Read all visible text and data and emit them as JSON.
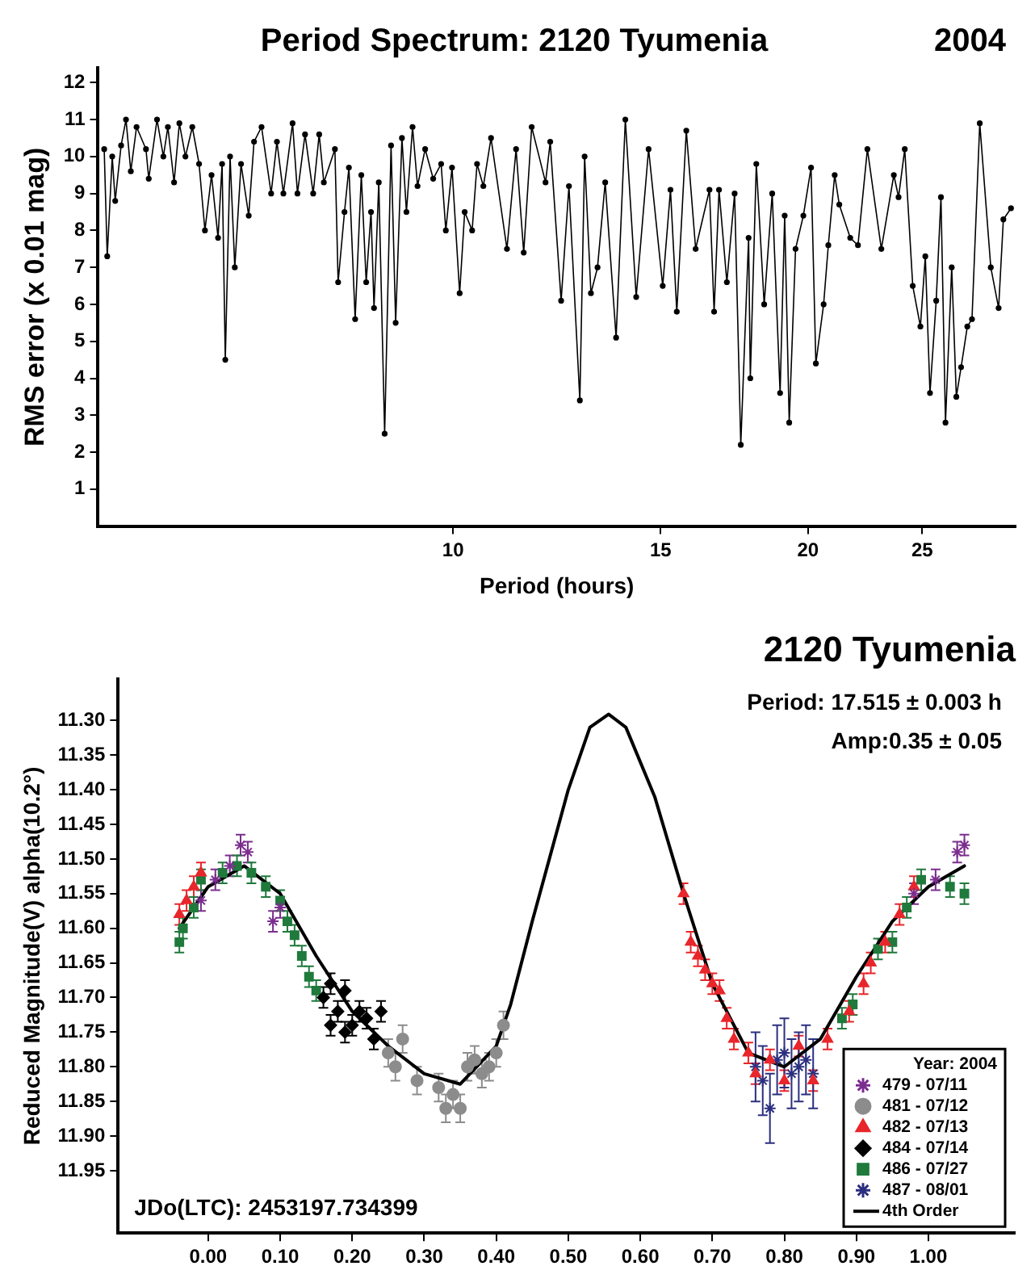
{
  "chart_data": [
    {
      "type": "line",
      "title": "Period Spectrum: 2120 Tyumenia",
      "annotations": [
        "2004"
      ],
      "xlabel": "Period (hours)",
      "ylabel": "RMS error (x 0.01 mag)",
      "log": "x",
      "xlim": [
        5,
        30
      ],
      "xticks": [
        10,
        15,
        20,
        25
      ],
      "ylim": [
        0,
        12.4
      ],
      "yticks": [
        1,
        2,
        3,
        4,
        5,
        6,
        7,
        8,
        9,
        10,
        11,
        12
      ],
      "grid": false,
      "marker": "circle",
      "color": "#000000",
      "x": [
        5.06,
        5.09,
        5.14,
        5.17,
        5.23,
        5.28,
        5.33,
        5.39,
        5.49,
        5.52,
        5.61,
        5.68,
        5.73,
        5.8,
        5.86,
        5.93,
        6.01,
        6.09,
        6.16,
        6.24,
        6.32,
        6.37,
        6.41,
        6.47,
        6.53,
        6.61,
        6.71,
        6.78,
        6.88,
        7.01,
        7.09,
        7.18,
        7.31,
        7.38,
        7.49,
        7.61,
        7.7,
        7.77,
        7.94,
        7.99,
        8.09,
        8.16,
        8.26,
        8.36,
        8.44,
        8.52,
        8.57,
        8.65,
        8.75,
        8.86,
        8.94,
        9.05,
        9.13,
        9.24,
        9.33,
        9.47,
        9.62,
        9.77,
        9.86,
        9.98,
        10.13,
        10.23,
        10.38,
        10.48,
        10.61,
        10.77,
        11.11,
        11.31,
        11.48,
        11.66,
        11.98,
        12.09,
        12.35,
        12.54,
        12.81,
        12.93,
        13.09,
        13.26,
        13.46,
        13.75,
        14.0,
        14.3,
        14.65,
        15.06,
        15.29,
        15.48,
        15.77,
        16.06,
        16.5,
        16.65,
        16.81,
        17.07,
        17.33,
        17.54,
        17.81,
        17.87,
        18.08,
        18.36,
        18.65,
        18.94,
        19.11,
        19.28,
        19.52,
        19.82,
        20.12,
        20.31,
        20.62,
        20.81,
        21.07,
        21.26,
        21.72,
        22.05,
        22.46,
        23.08,
        23.65,
        23.87,
        24.16,
        24.54,
        24.91,
        25.15,
        25.38,
        25.69,
        25.93,
        26.16,
        26.48,
        26.72,
        26.97,
        27.3,
        27.55,
        27.97,
        28.58,
        29.02,
        29.29,
        29.73
      ],
      "values": [
        10.2,
        7.3,
        10.0,
        8.8,
        10.3,
        11.0,
        9.6,
        10.8,
        10.2,
        9.4,
        11.0,
        10.0,
        10.8,
        9.3,
        10.9,
        10.0,
        10.8,
        9.8,
        8.0,
        9.5,
        7.8,
        9.8,
        4.5,
        10.0,
        7.0,
        9.8,
        8.4,
        10.4,
        10.8,
        9.0,
        10.4,
        9.0,
        10.9,
        9.0,
        10.6,
        9.0,
        10.6,
        9.3,
        10.2,
        6.6,
        8.5,
        9.7,
        5.6,
        9.5,
        6.6,
        8.5,
        5.9,
        9.3,
        2.5,
        10.3,
        5.5,
        10.5,
        8.5,
        10.8,
        9.2,
        10.2,
        9.4,
        9.8,
        8.0,
        9.7,
        6.3,
        8.5,
        8.0,
        9.8,
        9.2,
        10.5,
        7.5,
        10.2,
        7.4,
        10.8,
        9.3,
        10.4,
        6.1,
        9.2,
        3.4,
        10.0,
        6.3,
        7.0,
        9.3,
        5.1,
        11.0,
        6.2,
        10.2,
        6.5,
        9.1,
        5.8,
        10.7,
        7.5,
        9.1,
        5.8,
        9.1,
        6.6,
        9.0,
        2.2,
        7.8,
        4.0,
        9.8,
        6.0,
        9.0,
        3.6,
        8.4,
        2.8,
        7.5,
        8.4,
        9.7,
        4.4,
        6.0,
        7.6,
        9.5,
        8.7,
        7.8,
        7.6,
        10.2,
        7.5,
        9.5,
        8.9,
        10.2,
        6.5,
        5.4,
        7.3,
        3.6,
        6.1,
        8.9,
        2.8,
        7.0,
        3.5,
        4.3,
        5.4,
        5.6,
        10.9,
        7.0,
        5.9,
        8.3,
        8.6
      ]
    },
    {
      "type": "scatter",
      "title": "2120 Tyumenia",
      "annotations": [
        "Period: 17.515 ± 0.003 h",
        "Amp:0.35 ± 0.05",
        "JDo(LTC): 2453197.734399"
      ],
      "ylabel": "Reduced Magnitude(V) alpha(10.2°)",
      "xlim": [
        -0.125,
        1.12
      ],
      "xticks": [
        {
          "value": 0,
          "label": "0.00"
        },
        {
          "value": 0.1,
          "label": "0.10"
        },
        {
          "value": 0.2,
          "label": "0.20"
        },
        {
          "value": 0.3,
          "label": "0.30"
        },
        {
          "value": 0.4,
          "label": "0.40"
        },
        {
          "value": 0.5,
          "label": "0.50"
        },
        {
          "value": 0.6,
          "label": "0.60"
        },
        {
          "value": 0.7,
          "label": "0.70"
        },
        {
          "value": 0.8,
          "label": "0.80"
        },
        {
          "value": 0.9,
          "label": "0.90"
        },
        {
          "value": 1,
          "label": "1.00"
        }
      ],
      "ylim": [
        12.04,
        11.24
      ],
      "yticks": [
        {
          "value": 11.3,
          "label": "11.30"
        },
        {
          "value": 11.35,
          "label": "11.35"
        },
        {
          "value": 11.4,
          "label": "11.40"
        },
        {
          "value": 11.45,
          "label": "11.45"
        },
        {
          "value": 11.5,
          "label": "11.50"
        },
        {
          "value": 11.55,
          "label": "11.55"
        },
        {
          "value": 11.6,
          "label": "11.60"
        },
        {
          "value": 11.65,
          "label": "11.65"
        },
        {
          "value": 11.7,
          "label": "11.70"
        },
        {
          "value": 11.75,
          "label": "11.75"
        },
        {
          "value": 11.8,
          "label": "11.80"
        },
        {
          "value": 11.85,
          "label": "11.85"
        },
        {
          "value": 11.9,
          "label": "11.90"
        },
        {
          "value": 11.95,
          "label": "11.95"
        }
      ],
      "grid": false,
      "legend": "bottom right",
      "legend_title": "Year: 2004",
      "series": [
        {
          "name": "479 - 07/11",
          "color": "#7b2d8e",
          "marker": "cross",
          "x": [
            -0.01,
            0.01,
            0.03,
            0.045,
            0.055,
            0.09,
            0.1,
            0.98,
            1.01,
            1.04,
            1.05
          ],
          "values": [
            11.56,
            11.53,
            11.51,
            11.48,
            11.49,
            11.59,
            11.57,
            11.55,
            11.53,
            11.49,
            11.48
          ],
          "errors": [
            0.015,
            0.015,
            0.015,
            0.015,
            0.015,
            0.015,
            0.015,
            0.015,
            0.015,
            0.015,
            0.015
          ]
        },
        {
          "name": "481 - 07/12",
          "color": "#8c8c8c",
          "marker": "circle",
          "x": [
            0.25,
            0.26,
            0.27,
            0.29,
            0.32,
            0.33,
            0.34,
            0.35,
            0.36,
            0.37,
            0.38,
            0.39,
            0.4,
            0.41
          ],
          "values": [
            11.78,
            11.8,
            11.76,
            11.82,
            11.83,
            11.86,
            11.84,
            11.86,
            11.8,
            11.79,
            11.81,
            11.8,
            11.78,
            11.74
          ],
          "errors": [
            0.02,
            0.02,
            0.02,
            0.02,
            0.02,
            0.02,
            0.02,
            0.02,
            0.02,
            0.02,
            0.02,
            0.02,
            0.02,
            0.02
          ]
        },
        {
          "name": "482 - 07/13",
          "color": "#e8262b",
          "marker": "triangle",
          "x": [
            -0.04,
            -0.03,
            -0.02,
            -0.01,
            0.66,
            0.67,
            0.68,
            0.69,
            0.7,
            0.71,
            0.72,
            0.73,
            0.75,
            0.76,
            0.78,
            0.8,
            0.82,
            0.84,
            0.86,
            0.89,
            0.91,
            0.92,
            0.94,
            0.96,
            0.98
          ],
          "values": [
            11.58,
            11.56,
            11.54,
            11.52,
            11.55,
            11.62,
            11.64,
            11.66,
            11.68,
            11.69,
            11.73,
            11.76,
            11.78,
            11.81,
            11.79,
            11.82,
            11.77,
            11.82,
            11.76,
            11.72,
            11.68,
            11.65,
            11.62,
            11.58,
            11.54
          ],
          "errors": [
            0.015,
            0.015,
            0.015,
            0.015,
            0.015,
            0.015,
            0.015,
            0.015,
            0.015,
            0.015,
            0.015,
            0.015,
            0.015,
            0.015,
            0.015,
            0.015,
            0.015,
            0.015,
            0.015,
            0.015,
            0.015,
            0.015,
            0.015,
            0.015,
            0.015
          ]
        },
        {
          "name": "484 - 07/14",
          "color": "#000000",
          "marker": "diamond",
          "x": [
            0.16,
            0.17,
            0.17,
            0.18,
            0.19,
            0.19,
            0.2,
            0.21,
            0.22,
            0.23,
            0.24
          ],
          "values": [
            11.7,
            11.68,
            11.74,
            11.72,
            11.69,
            11.75,
            11.74,
            11.72,
            11.73,
            11.76,
            11.72
          ],
          "errors": [
            0.015,
            0.015,
            0.015,
            0.015,
            0.015,
            0.015,
            0.015,
            0.015,
            0.015,
            0.015,
            0.015
          ]
        },
        {
          "name": "486 - 07/27",
          "color": "#1f7a3c",
          "marker": "square",
          "x": [
            -0.04,
            -0.035,
            -0.02,
            -0.01,
            0.02,
            0.04,
            0.06,
            0.08,
            0.1,
            0.11,
            0.12,
            0.13,
            0.14,
            0.15,
            0.88,
            0.895,
            0.93,
            0.95,
            0.97,
            0.99,
            1.03,
            1.05
          ],
          "values": [
            11.62,
            11.6,
            11.57,
            11.53,
            11.52,
            11.51,
            11.52,
            11.54,
            11.56,
            11.59,
            11.61,
            11.64,
            11.67,
            11.69,
            11.73,
            11.71,
            11.63,
            11.62,
            11.57,
            11.53,
            11.54,
            11.55
          ],
          "errors": [
            0.015,
            0.015,
            0.015,
            0.015,
            0.015,
            0.015,
            0.015,
            0.015,
            0.015,
            0.015,
            0.015,
            0.015,
            0.015,
            0.015,
            0.015,
            0.015,
            0.015,
            0.015,
            0.015,
            0.015,
            0.015,
            0.015
          ]
        },
        {
          "name": "487 - 08/01",
          "color": "#2b2f7f",
          "marker": "cross",
          "x": [
            0.76,
            0.77,
            0.78,
            0.79,
            0.8,
            0.81,
            0.82,
            0.83,
            0.84
          ],
          "values": [
            11.8,
            11.82,
            11.86,
            11.79,
            11.78,
            11.81,
            11.8,
            11.79,
            11.81
          ],
          "errors": [
            0.05,
            0.05,
            0.05,
            0.05,
            0.05,
            0.05,
            0.05,
            0.05,
            0.05
          ]
        },
        {
          "name": "4th Order",
          "type": "line",
          "color": "#000000",
          "marker": "none",
          "x": [
            -0.04,
            0,
            0.05,
            0.1,
            0.15,
            0.2,
            0.25,
            0.3,
            0.35,
            0.4,
            0.42,
            0.45,
            0.5,
            0.53,
            0.556,
            0.58,
            0.62,
            0.66,
            0.7,
            0.75,
            0.8,
            0.85,
            0.9,
            0.95,
            1,
            1.05
          ],
          "values": [
            11.6,
            11.54,
            11.51,
            11.55,
            11.64,
            11.72,
            11.77,
            11.81,
            11.825,
            11.77,
            11.71,
            11.59,
            11.4,
            11.31,
            11.291,
            11.31,
            11.41,
            11.55,
            11.68,
            11.78,
            11.8,
            11.76,
            11.67,
            11.59,
            11.54,
            11.51
          ]
        }
      ]
    }
  ]
}
